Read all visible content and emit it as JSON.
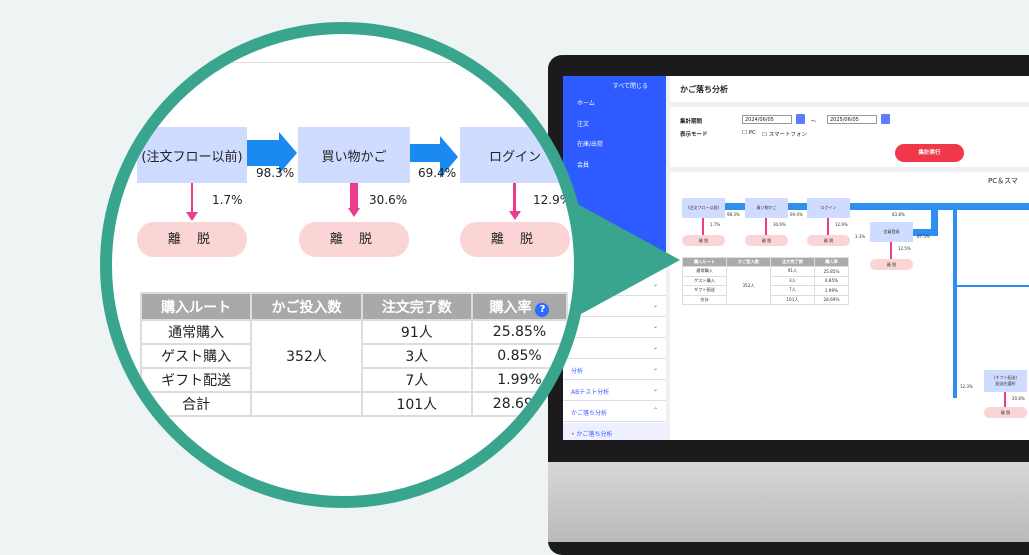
{
  "screen": {
    "sidebar": {
      "collapse_all": "すべて閉じる",
      "items": [
        {
          "label": "ホーム",
          "icon": "home-icon"
        },
        {
          "label": "注文",
          "icon": "cart-icon"
        },
        {
          "label": "在庫/出荷",
          "icon": "box-icon"
        },
        {
          "label": "会員",
          "icon": "user-icon"
        }
      ],
      "sub_items": [
        "分析",
        "ABテスト分析",
        "かご落ち分析"
      ],
      "active_item": "かご落ち分析"
    },
    "page_title": "かご落ち分析",
    "filters": {
      "period_label": "集計期間",
      "date_from": "2024/06/05",
      "separator": "〜",
      "date_to": "2025/06/05",
      "mode_label": "表示モード",
      "mode_options": [
        "PC",
        "スマートフォン"
      ],
      "run_button": "集計実行"
    },
    "chart_heading": "PC＆スマ",
    "flow": {
      "steps": [
        "(注文フロー以前)",
        "買い物かご",
        "ログイン",
        "会員登録",
        "(ギフト配送)\n配送先選択"
      ],
      "transitions": [
        "98.3%",
        "69.4%",
        "83.8%",
        "3.3%",
        "87.5%",
        "12.3%"
      ],
      "dropoffs": [
        "1.7%",
        "30.6%",
        "12.9%",
        "12.5%",
        "20.8%"
      ],
      "dropoff_label": "離 脱"
    }
  },
  "magnified": {
    "steps": [
      "(注文フロー以前)",
      "買い物かご",
      "ログイン"
    ],
    "transitions": [
      "98.3%",
      "69.4%"
    ],
    "dropoffs": [
      "1.7%",
      "30.6%",
      "12.9%"
    ],
    "dropoff_label": "離 脱",
    "table": {
      "headers": [
        "購入ルート",
        "かご投入数",
        "注文完了数",
        "購入率"
      ],
      "help_icon": "?",
      "cart_total": "352人",
      "rows": [
        {
          "route": "通常購入",
          "completed": "91人",
          "rate": "25.85%"
        },
        {
          "route": "ゲスト購入",
          "completed": "3人",
          "rate": "0.85%"
        },
        {
          "route": "ギフト配送",
          "completed": "7人",
          "rate": "1.99%"
        },
        {
          "route": "合計",
          "completed": "101人",
          "rate": "28.69%"
        }
      ]
    }
  },
  "colors": {
    "teal": "#3aa58f",
    "blue": "#1a8af0",
    "sidebar": "#2d5bff",
    "run": "#f0384a",
    "dropoff": "#fbd5d5"
  }
}
